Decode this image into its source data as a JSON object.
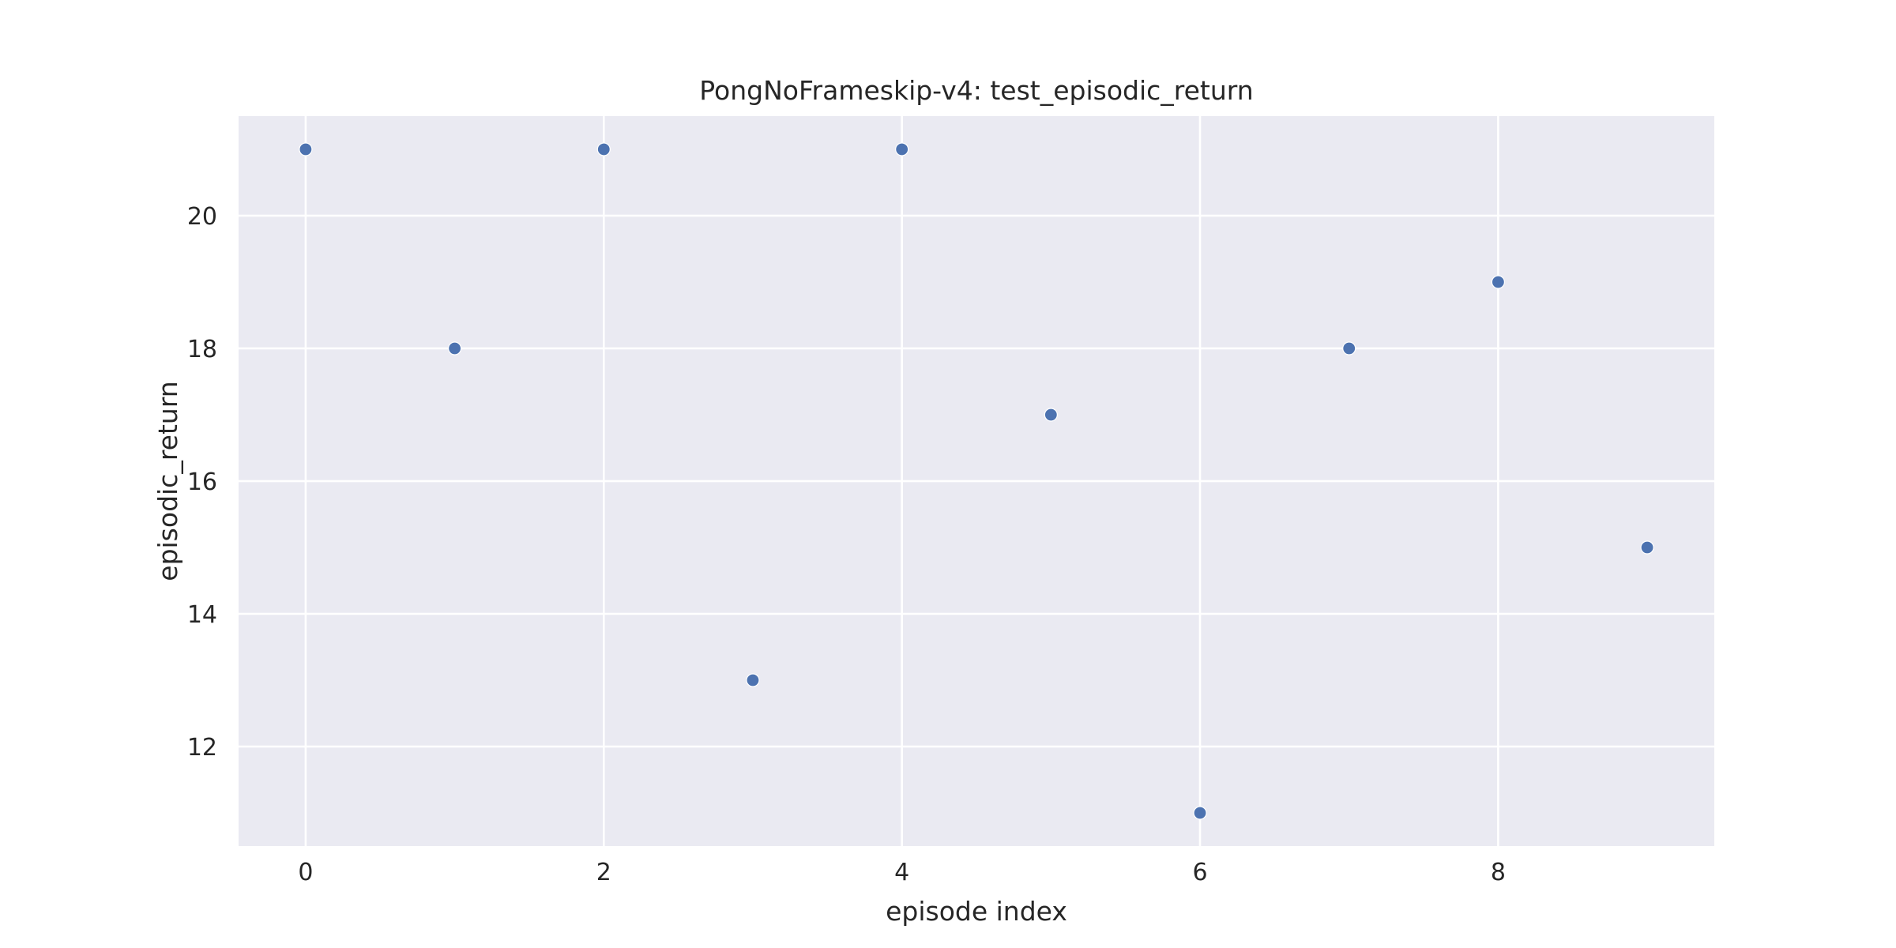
{
  "chart_data": {
    "type": "scatter",
    "title": "PongNoFrameskip-v4: test_episodic_return",
    "xlabel": "episode index",
    "ylabel": "episodic_return",
    "x": [
      0,
      1,
      2,
      3,
      4,
      5,
      6,
      7,
      8,
      9
    ],
    "y": [
      21,
      18,
      21,
      13,
      21,
      17,
      11,
      18,
      19,
      15
    ],
    "xticks": [
      0,
      2,
      4,
      6,
      8
    ],
    "yticks": [
      12,
      14,
      16,
      18,
      20
    ],
    "xlim": [
      -0.45,
      9.45
    ],
    "ylim": [
      10.5,
      21.5
    ],
    "grid": true,
    "legend": "none",
    "colors": {
      "background": "#eaeaf2",
      "grid": "#ffffff",
      "marker": "#4c72b0"
    }
  }
}
